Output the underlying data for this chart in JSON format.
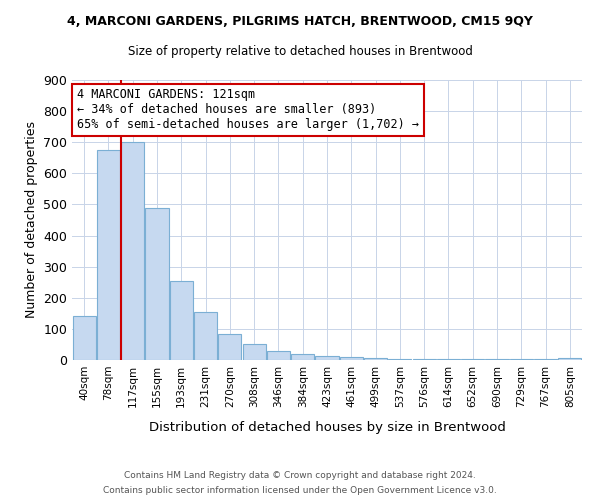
{
  "title": "4, MARCONI GARDENS, PILGRIMS HATCH, BRENTWOOD, CM15 9QY",
  "subtitle": "Size of property relative to detached houses in Brentwood",
  "xlabel": "Distribution of detached houses by size in Brentwood",
  "ylabel": "Number of detached properties",
  "bar_labels": [
    "40sqm",
    "78sqm",
    "117sqm",
    "155sqm",
    "193sqm",
    "231sqm",
    "270sqm",
    "308sqm",
    "346sqm",
    "384sqm",
    "423sqm",
    "461sqm",
    "499sqm",
    "537sqm",
    "576sqm",
    "614sqm",
    "652sqm",
    "690sqm",
    "729sqm",
    "767sqm",
    "805sqm"
  ],
  "bar_values": [
    140,
    675,
    700,
    490,
    255,
    155,
    85,
    50,
    30,
    20,
    12,
    10,
    5,
    4,
    4,
    3,
    3,
    2,
    2,
    2,
    7
  ],
  "bar_color": "#c6d9f0",
  "bar_edge_color": "#7bafd4",
  "red_line_color": "#cc0000",
  "annotation_text": "4 MARCONI GARDENS: 121sqm\n← 34% of detached houses are smaller (893)\n65% of semi-detached houses are larger (1,702) →",
  "annotation_box_color": "white",
  "annotation_box_edge": "#cc0000",
  "ylim": [
    0,
    900
  ],
  "yticks": [
    0,
    100,
    200,
    300,
    400,
    500,
    600,
    700,
    800,
    900
  ],
  "footnote1": "Contains HM Land Registry data © Crown copyright and database right 2024.",
  "footnote2": "Contains public sector information licensed under the Open Government Licence v3.0.",
  "background_color": "#ffffff",
  "grid_color": "#c8d4e8"
}
